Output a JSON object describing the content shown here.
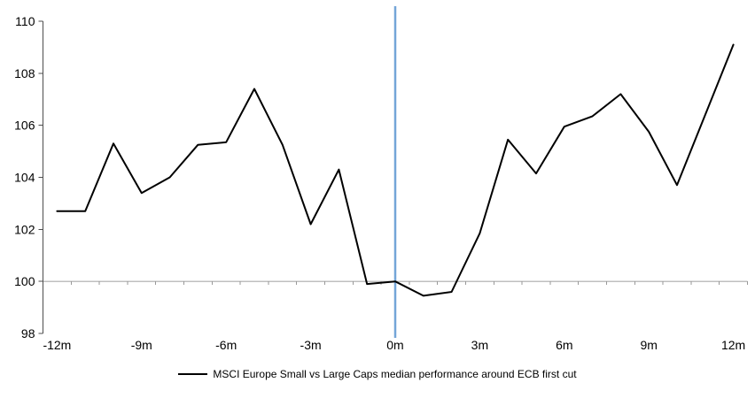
{
  "chart_data": {
    "type": "line",
    "categories": [
      "-12m",
      "-11m",
      "-10m",
      "-9m",
      "-8m",
      "-7m",
      "-6m",
      "-5m",
      "-4m",
      "-3m",
      "-2m",
      "-1m",
      "0m",
      "1m",
      "2m",
      "3m",
      "4m",
      "5m",
      "6m",
      "7m",
      "8m",
      "9m",
      "10m",
      "11m",
      "12m"
    ],
    "series": [
      {
        "name": "MSCI Europe Small vs Large Caps median performance around ECB first cut",
        "color": "#000000",
        "values": [
          102.7,
          102.7,
          105.3,
          103.4,
          104.0,
          105.25,
          105.35,
          107.4,
          105.25,
          102.2,
          104.3,
          99.9,
          100.0,
          99.45,
          99.6,
          101.85,
          105.45,
          104.15,
          105.95,
          106.35,
          107.2,
          105.75,
          103.7,
          106.4,
          109.1
        ]
      }
    ],
    "ylim": [
      98,
      110
    ],
    "y_ticks": [
      "98",
      "100",
      "102",
      "104",
      "106",
      "108",
      "110"
    ],
    "x_tick_labels": [
      "-12m",
      "-9m",
      "-6m",
      "-3m",
      "0m",
      "3m",
      "6m",
      "9m",
      "12m"
    ],
    "x_tick_step": 3,
    "grid": false,
    "legend_position": "bottom",
    "annotations": {
      "event_line": {
        "at_category": "0m",
        "color": "#74A5D8"
      },
      "baseline": {
        "at_value": 100,
        "color": "#BFBFBF"
      }
    },
    "axis_colors": {
      "y_axis": "#4D4D4D",
      "baseline_ticks": "#999999"
    }
  }
}
